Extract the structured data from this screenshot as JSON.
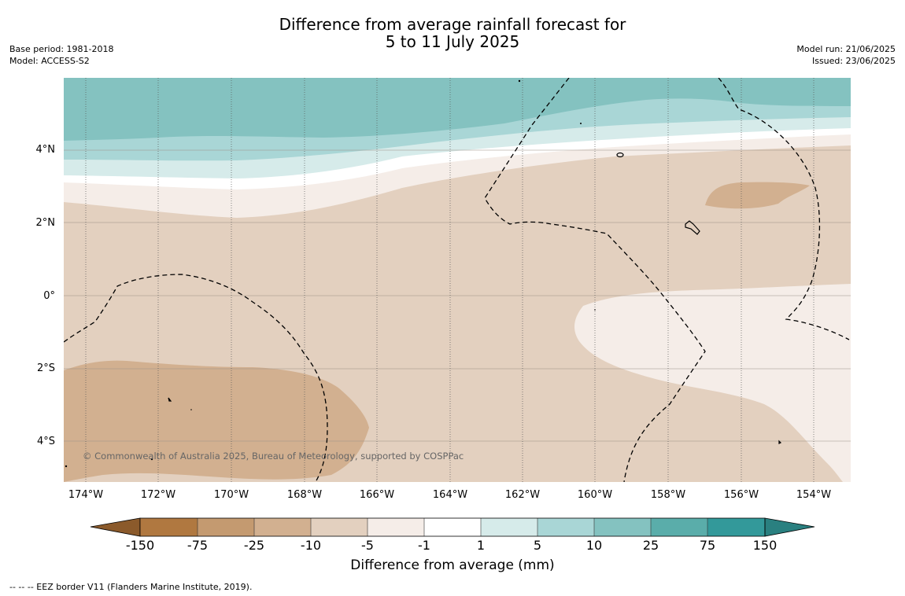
{
  "title": {
    "line1": "Difference from average rainfall forecast for",
    "line2": "5 to 11 July 2025"
  },
  "meta_left": {
    "base_period": "Base period: 1981-2018",
    "model": "Model: ACCESS-S2"
  },
  "meta_right": {
    "model_run": "Model run: 21/06/2025",
    "issued": "Issued: 23/06/2025"
  },
  "map": {
    "copyright": "© Commonwealth of Australia 2025, Bureau of Meteorology, supported by COSPPac",
    "lat_labels": [
      "4°N",
      "2°N",
      "0°",
      "2°S",
      "4°S"
    ],
    "lon_labels": [
      "174°W",
      "172°W",
      "170°W",
      "168°W",
      "166°W",
      "164°W",
      "162°W",
      "160°W",
      "158°W",
      "156°W",
      "154°W"
    ]
  },
  "colorbar": {
    "title": "Difference from average (mm)",
    "ticks": [
      "-150",
      "-75",
      "-25",
      "-10",
      "-5",
      "-1",
      "1",
      "5",
      "10",
      "25",
      "75",
      "150"
    ],
    "colors": {
      "below_-150": "#8b5a2b",
      "-150_-75": "#b07840",
      "-75_-25": "#c49a70",
      "-25_-10": "#d2b090",
      "-10_-5": "#e3d0bf",
      "-5_-1": "#f5ede8",
      "-1_1": "#ffffff",
      "1_5": "#d6ebea",
      "5_10": "#a9d6d6",
      "10_25": "#84c2c0",
      "25_75": "#5aadaa",
      "75_150": "#33999a",
      "above_150": "#2a8080"
    }
  },
  "footer": "--  --  -- EEZ border V11 (Flanders Marine Institute, 2019)."
}
